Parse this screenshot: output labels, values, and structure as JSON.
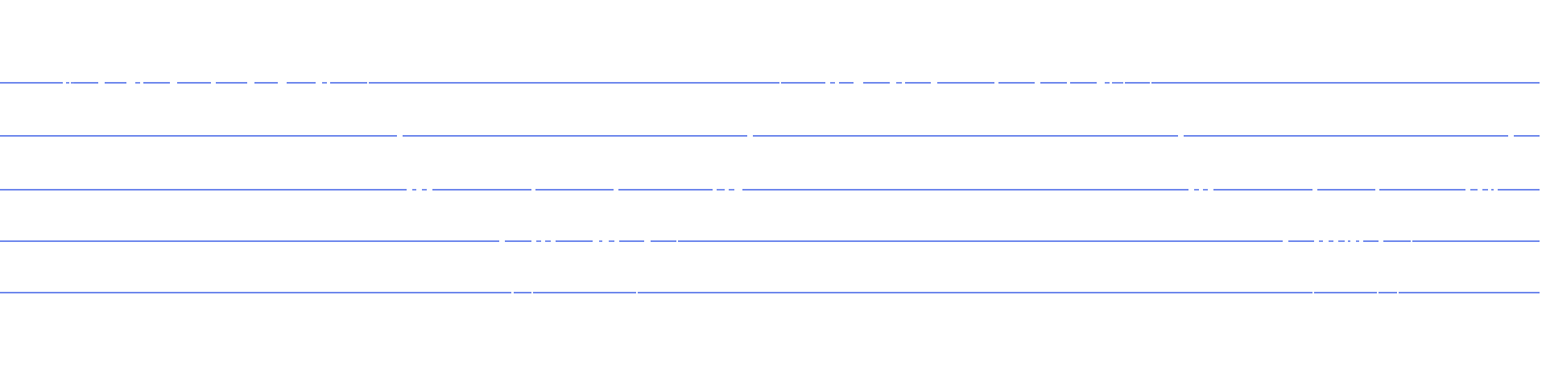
{
  "colors": {
    "background": "#ffffff",
    "line": "#3b5ee6"
  },
  "rows": [
    {
      "pattern": "dashed-gapped",
      "description": ""
    },
    {
      "pattern": "dashed-sparse",
      "description": ""
    },
    {
      "pattern": "dashed-dotted",
      "description": ""
    },
    {
      "pattern": "dashed-dotted-short",
      "description": ""
    },
    {
      "pattern": "mostly-solid",
      "description": ""
    }
  ]
}
